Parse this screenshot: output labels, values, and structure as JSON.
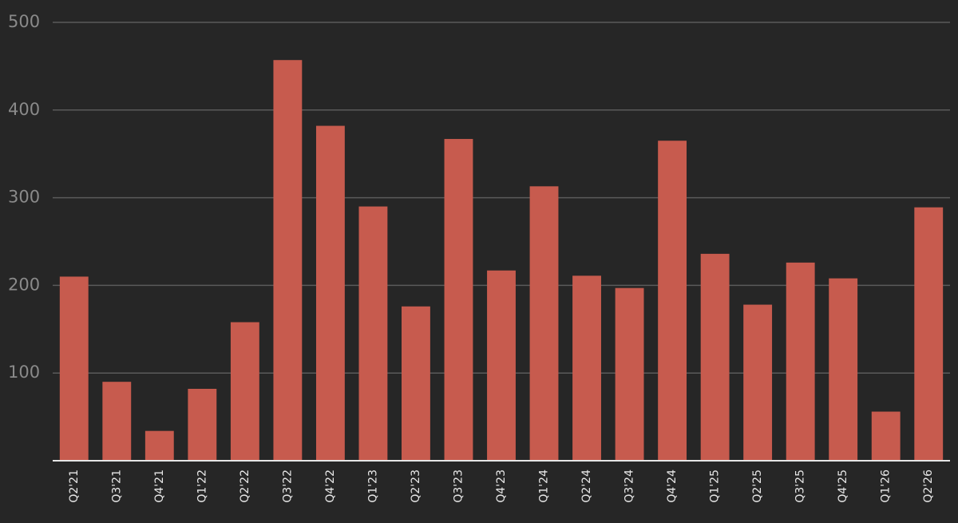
{
  "chart_data": {
    "type": "bar",
    "categories": [
      "Q2'21",
      "Q3'21",
      "Q4'21",
      "Q1'22",
      "Q2'22",
      "Q3'22",
      "Q4'22",
      "Q1'23",
      "Q2'23",
      "Q3'23",
      "Q4'23",
      "Q1'24",
      "Q2'24",
      "Q3'24",
      "Q4'24",
      "Q1'25",
      "Q2'25",
      "Q3'25",
      "Q4'25",
      "Q1'26",
      "Q2'26"
    ],
    "values": [
      210,
      90,
      34,
      82,
      158,
      457,
      382,
      290,
      176,
      367,
      217,
      313,
      211,
      197,
      365,
      236,
      178,
      226,
      208,
      56,
      289
    ],
    "color": "#c75b4e",
    "ylim": [
      0,
      500
    ],
    "yticks": [
      100,
      200,
      300,
      400,
      500
    ],
    "grid": true
  }
}
